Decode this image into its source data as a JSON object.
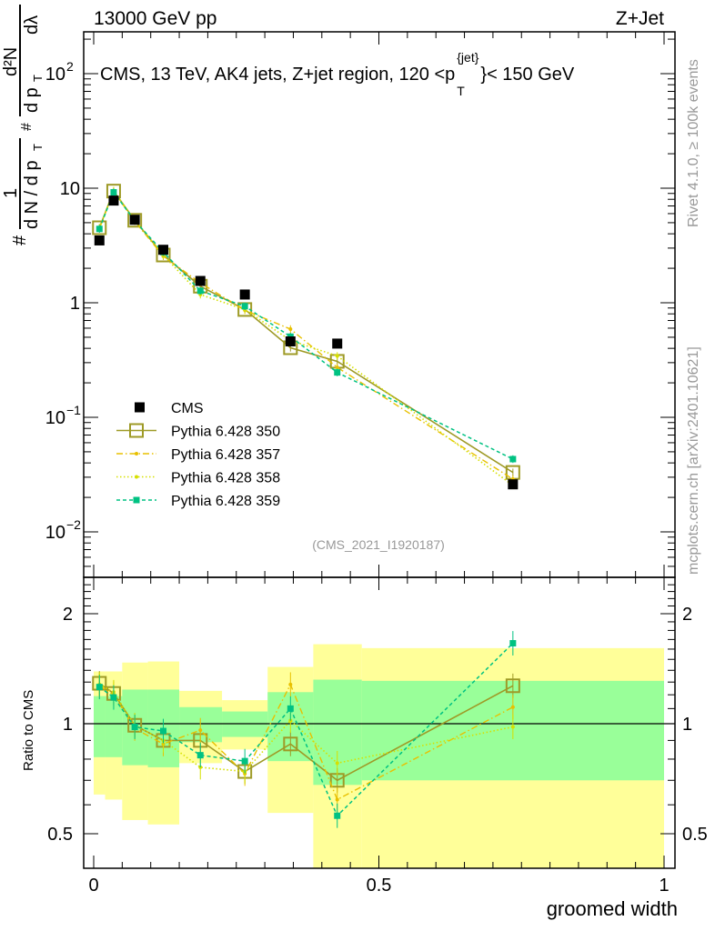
{
  "header": {
    "left": "13000 GeV pp",
    "right": "Z+Jet"
  },
  "side": {
    "rivet": "Rivet 4.1.0, ≥ 100k events",
    "mcplots": "mcplots.cern.ch [arXiv:2401.10621]"
  },
  "watermark": "(CMS_2021_I1920187)",
  "colors": {
    "cms": "#000000",
    "p350": "#9e9a26",
    "p357": "#e8c000",
    "p358": "#d6e000",
    "p359": "#00c282",
    "band_outer": "#ffff99",
    "band_inner": "#99ff99"
  },
  "chart_data": {
    "type": "line",
    "title": "CMS, 13 TeV, AK4 jets, Z+jet region, 120 <p_T^{jet}< 150 GeV",
    "title_parts": {
      "main": "CMS, 13 TeV, AK4 jets, Z+jet region, 120 <p",
      "sup": "{jet}",
      "sub": "T",
      "tail": "}< 150 GeV"
    },
    "xlabel": "groomed width",
    "ylabel_parts": {
      "hash1": "#",
      "one": "1",
      "den1": "d N / d p",
      "den1_sub": "T",
      "hash2": "#",
      "num2": "d²N",
      "den2": "d p",
      "den2_sub": "T",
      "den2_tail": "dλ"
    },
    "ratio_ylabel": "Ratio to CMS",
    "xlim": [
      0,
      1
    ],
    "ylim_log10": [
      -2.4,
      2.37
    ],
    "ratio_ylim": [
      0.4,
      2.5
    ],
    "yscale": "log",
    "ratio_yscale": "log",
    "x_ticks": [
      "0",
      "0.5",
      "1"
    ],
    "y_ticks": [
      {
        "value": 100,
        "base": "10",
        "exp": "2"
      },
      {
        "value": 10,
        "base": "10",
        "exp": ""
      },
      {
        "value": 1,
        "base": "1",
        "exp": ""
      },
      {
        "value": 0.1,
        "base": "10",
        "exp": "−1"
      },
      {
        "value": 0.01,
        "base": "10",
        "exp": "−2"
      }
    ],
    "ratio_ticks": [
      {
        "value": 2,
        "label": "2"
      },
      {
        "value": 1,
        "label": "1"
      },
      {
        "value": 0.5,
        "label": "0.5"
      }
    ],
    "bin_edges": [
      0,
      0.02,
      0.05,
      0.095,
      0.15,
      0.225,
      0.305,
      0.385,
      0.47,
      1.0
    ],
    "x": [
      0.01,
      0.035,
      0.072,
      0.122,
      0.187,
      0.265,
      0.345,
      0.427,
      0.735
    ],
    "band_inner": {
      "up": [
        1.19,
        1.19,
        1.24,
        1.24,
        1.11,
        1.08,
        1.22,
        1.32,
        1.31
      ],
      "down": [
        0.81,
        0.81,
        0.77,
        0.76,
        0.89,
        0.92,
        0.79,
        0.68,
        0.7
      ]
    },
    "band_outer": {
      "up": [
        1.39,
        1.39,
        1.47,
        1.48,
        1.23,
        1.16,
        1.43,
        1.65,
        1.61
      ],
      "down": [
        0.64,
        0.62,
        0.545,
        0.53,
        0.78,
        0.85,
        0.57,
        0.3,
        0.3
      ]
    },
    "data": {
      "name": "CMS",
      "values": [
        3.5,
        7.8,
        5.3,
        2.9,
        1.55,
        1.18,
        0.46,
        0.44,
        0.026
      ]
    },
    "series": [
      {
        "key": "p350",
        "name": "Pythia 6.428 350",
        "ratio": [
          1.29,
          1.21,
          0.99,
          0.9,
          0.9,
          0.74,
          0.88,
          0.7,
          1.27
        ]
      },
      {
        "key": "p357",
        "name": "Pythia 6.428 357",
        "ratio": [
          1.27,
          1.2,
          0.97,
          0.88,
          0.96,
          0.73,
          1.28,
          0.62,
          1.11
        ]
      },
      {
        "key": "p358",
        "name": "Pythia 6.428 358",
        "ratio": [
          1.28,
          1.22,
          0.99,
          0.9,
          0.76,
          0.74,
          1.02,
          0.78,
          0.98
        ]
      },
      {
        "key": "p359",
        "name": "Pythia 6.428 359",
        "ratio": [
          1.26,
          1.18,
          0.98,
          0.955,
          0.82,
          0.79,
          1.1,
          0.56,
          1.66
        ]
      }
    ],
    "legend_position": "lower-left",
    "grid": false
  }
}
